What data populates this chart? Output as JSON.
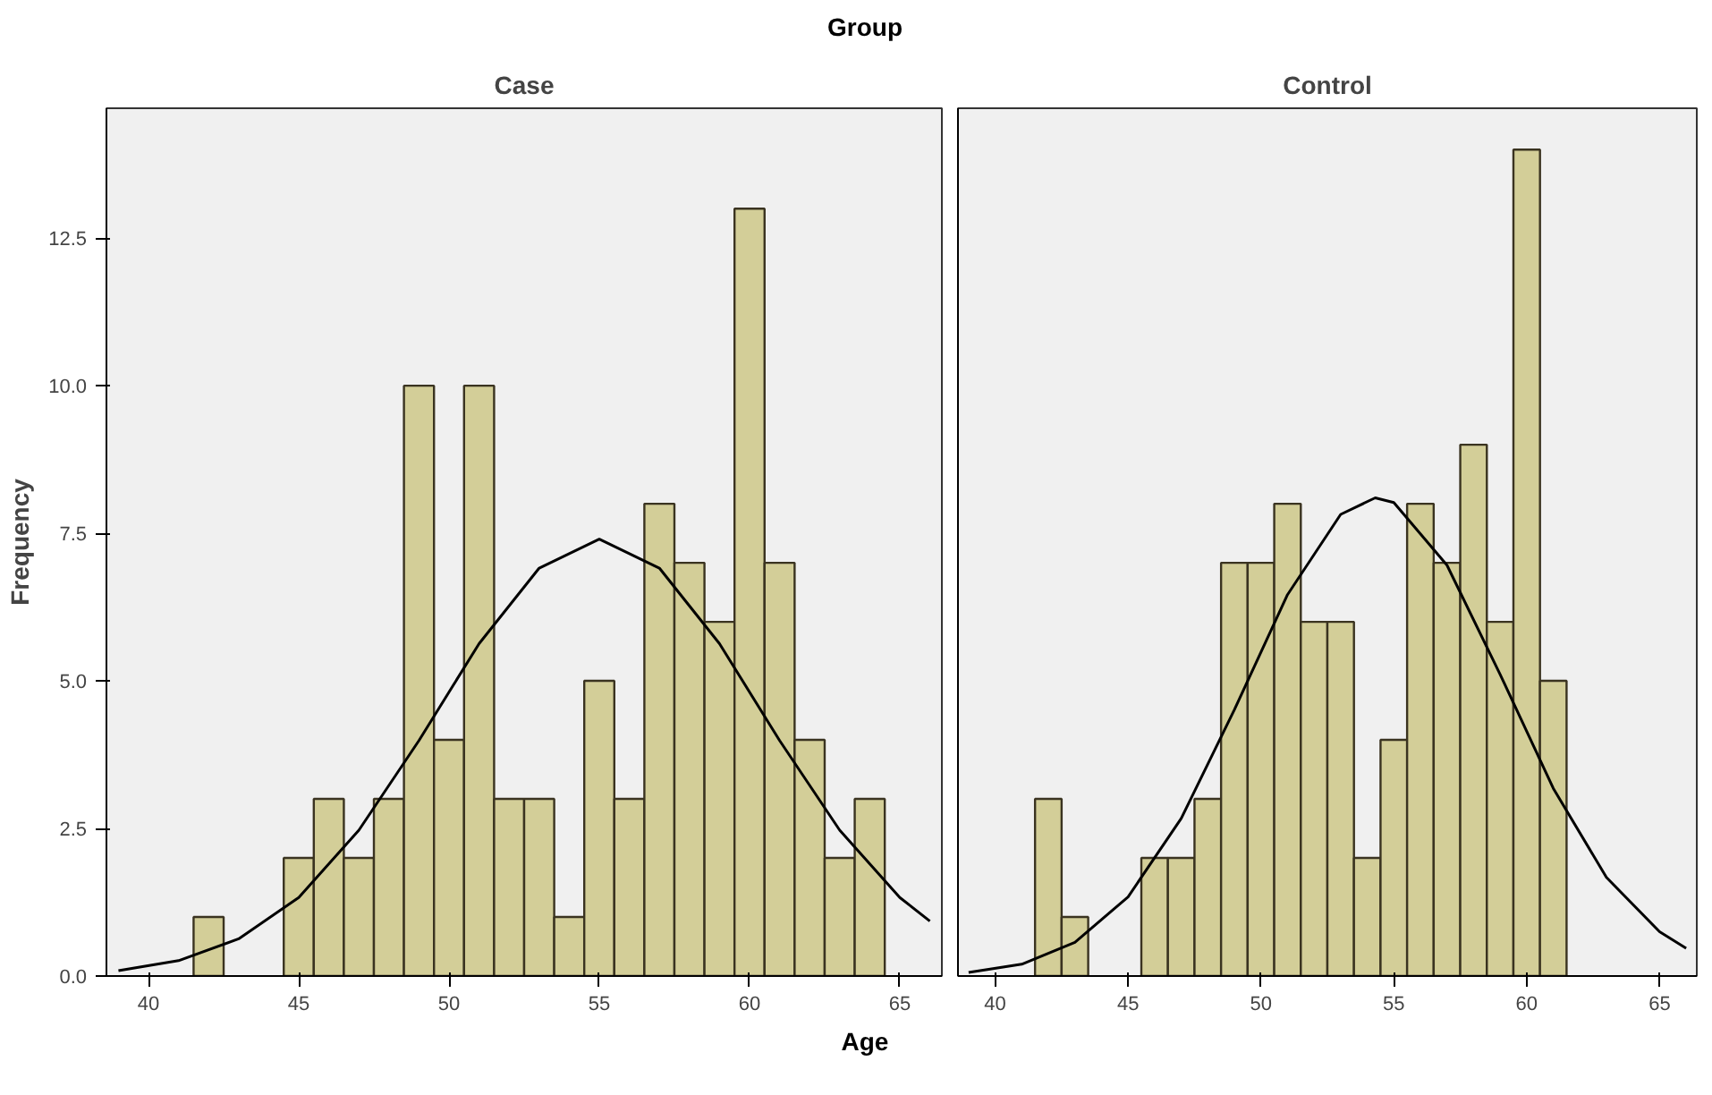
{
  "chart_data": [
    {
      "type": "histogram",
      "title": "Case",
      "xlabel": "Age",
      "ylabel": "Frequency",
      "annotations": [
        "Group"
      ],
      "bins": [
        41.5,
        42.5,
        43.5,
        44.5,
        45.5,
        46.5,
        47.5,
        48.5,
        49.5,
        50.5,
        51.5,
        52.5,
        53.5,
        54.5,
        55.5,
        56.5,
        57.5,
        58.5,
        59.5,
        60.5,
        61.5,
        62.5,
        63.5,
        64.5
      ],
      "series": [
        {
          "color": "#d3ce98",
          "values": [
            1,
            0,
            0,
            2,
            3,
            2,
            3,
            10,
            4,
            10,
            3,
            3,
            1,
            5,
            3,
            8,
            7,
            6,
            13,
            7,
            4,
            2,
            3
          ]
        },
        {
          "type": "line",
          "color": "#000000",
          "x": [
            39,
            41,
            43,
            45,
            47,
            49,
            51,
            53,
            55,
            57,
            59,
            61,
            63,
            65,
            66
          ],
          "values": [
            0.09,
            0.26,
            0.63,
            1.33,
            2.47,
            3.99,
            5.63,
            6.91,
            7.4,
            6.91,
            5.63,
            3.99,
            2.47,
            1.33,
            0.93
          ]
        }
      ],
      "xlim": [
        38.6,
        66.4
      ],
      "ylim": [
        0,
        14.7
      ],
      "xticks": [
        40,
        45,
        50,
        55,
        60,
        65
      ],
      "yticks": [
        {
          "value": 0,
          "label": "0.0"
        },
        2.5,
        {
          "value": 5,
          "label": "5.0"
        },
        7.5,
        {
          "value": 10,
          "label": "10.0"
        },
        12.5
      ],
      "grid": false
    },
    {
      "type": "histogram",
      "title": "Control",
      "bins": [
        41.5,
        42.5,
        43.5,
        44.5,
        45.5,
        46.5,
        47.5,
        48.5,
        49.5,
        50.5,
        51.5,
        52.5,
        53.5,
        54.5,
        55.5,
        56.5,
        57.5,
        58.5,
        59.5,
        60.5,
        61.5
      ],
      "series": [
        {
          "color": "#d3ce98",
          "values": [
            3,
            1,
            0,
            0,
            2,
            2,
            3,
            7,
            7,
            8,
            6,
            6,
            2,
            4,
            8,
            7,
            9,
            6,
            14,
            5
          ]
        },
        {
          "type": "line",
          "color": "#000000",
          "x": [
            39,
            41,
            43,
            45,
            47,
            49,
            51,
            53,
            54.3,
            55,
            57,
            59,
            61,
            63,
            65,
            66
          ],
          "values": [
            0.06,
            0.2,
            0.57,
            1.34,
            2.67,
            4.51,
            6.46,
            7.82,
            8.1,
            8.02,
            6.96,
            5.11,
            3.18,
            1.67,
            0.75,
            0.47
          ]
        }
      ],
      "xlim": [
        38.6,
        66.4
      ],
      "ylim": [
        0,
        14.7
      ],
      "xticks": [
        40,
        45,
        50,
        55,
        60,
        65
      ],
      "tick_labels": "x",
      "grid": false
    }
  ]
}
